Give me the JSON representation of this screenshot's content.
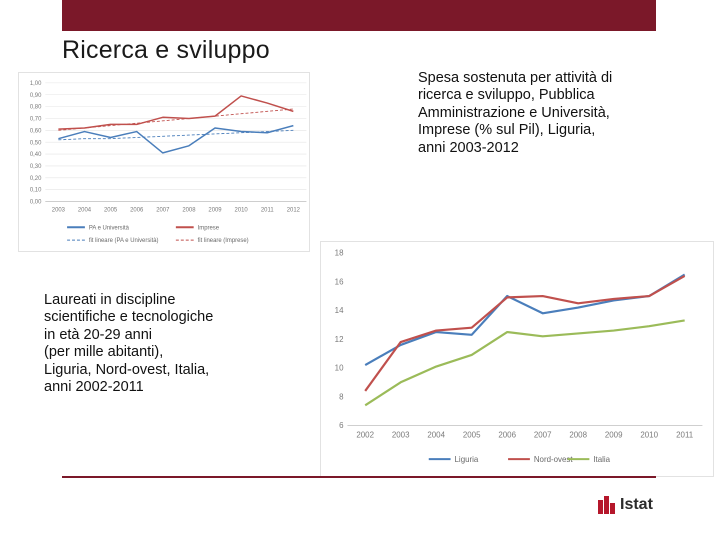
{
  "slide": {
    "title": "Ricerca e sviluppo",
    "caption_rd": "Spesa sostenuta per attività di\nricerca e sviluppo, Pubblica\nAmministrazione e Università,\nImprese (% sul Pil), Liguria,\nanni 2003-2012",
    "caption_grad": "Laureati in discipline\nscientifiche e tecnologiche\nin età 20-29 anni\n(per mille abitanti),\nLiguria, Nord-ovest, Italia,\nanni 2002-2011",
    "logo_text": "Istat",
    "colors": {
      "bar": "#7b1829",
      "logo_red": "#b5172b"
    }
  },
  "chart_data": [
    {
      "type": "line",
      "title": "",
      "xlabel": "",
      "ylabel": "",
      "categories": [
        "2003",
        "2004",
        "2005",
        "2006",
        "2007",
        "2008",
        "2009",
        "2010",
        "2011",
        "2012"
      ],
      "ylim": [
        0,
        1.0
      ],
      "yticks": [
        "0,00",
        "0,10",
        "0,20",
        "0,30",
        "0,40",
        "0,50",
        "0,60",
        "0,70",
        "0,80",
        "0,90",
        "1,00"
      ],
      "grid": true,
      "legend": "bottom",
      "series": [
        {
          "name": "PA e Università",
          "color": "#4a7ebb",
          "dash": false,
          "values": [
            0.53,
            0.59,
            0.54,
            0.59,
            0.41,
            0.47,
            0.62,
            0.59,
            0.58,
            0.64
          ]
        },
        {
          "name": "Imprese",
          "color": "#c0504d",
          "dash": false,
          "values": [
            0.61,
            0.62,
            0.65,
            0.65,
            0.71,
            0.7,
            0.72,
            0.89,
            0.83,
            0.76
          ]
        },
        {
          "name": "fit lineare (PA e Università)",
          "color": "#4a7ebb",
          "dash": true,
          "values": [
            0.52,
            0.53,
            0.53,
            0.54,
            0.55,
            0.56,
            0.57,
            0.58,
            0.59,
            0.6
          ]
        },
        {
          "name": "fit lineare (Imprese)",
          "color": "#c0504d",
          "dash": true,
          "values": [
            0.6,
            0.62,
            0.64,
            0.66,
            0.68,
            0.7,
            0.72,
            0.74,
            0.76,
            0.78
          ]
        }
      ]
    },
    {
      "type": "line",
      "title": "",
      "xlabel": "",
      "ylabel": "",
      "categories": [
        "2002",
        "2003",
        "2004",
        "2005",
        "2006",
        "2007",
        "2008",
        "2009",
        "2010",
        "2011"
      ],
      "ylim": [
        6,
        18
      ],
      "yticks": [
        "6",
        "8",
        "10",
        "12",
        "14",
        "16",
        "18"
      ],
      "grid": false,
      "legend": "bottom",
      "series": [
        {
          "name": "Liguria",
          "color": "#4a7ebb",
          "dash": false,
          "values": [
            10.2,
            11.6,
            12.5,
            12.3,
            15.0,
            13.8,
            14.2,
            14.7,
            15.0,
            16.5
          ]
        },
        {
          "name": "Nord-ovest",
          "color": "#c0504d",
          "dash": false,
          "values": [
            8.4,
            11.8,
            12.6,
            12.8,
            14.9,
            15.0,
            14.5,
            14.8,
            15.0,
            16.4
          ]
        },
        {
          "name": "Italia",
          "color": "#9bbb59",
          "dash": false,
          "values": [
            7.4,
            9.0,
            10.1,
            10.9,
            12.5,
            12.2,
            12.4,
            12.6,
            12.9,
            13.3
          ]
        }
      ]
    }
  ]
}
